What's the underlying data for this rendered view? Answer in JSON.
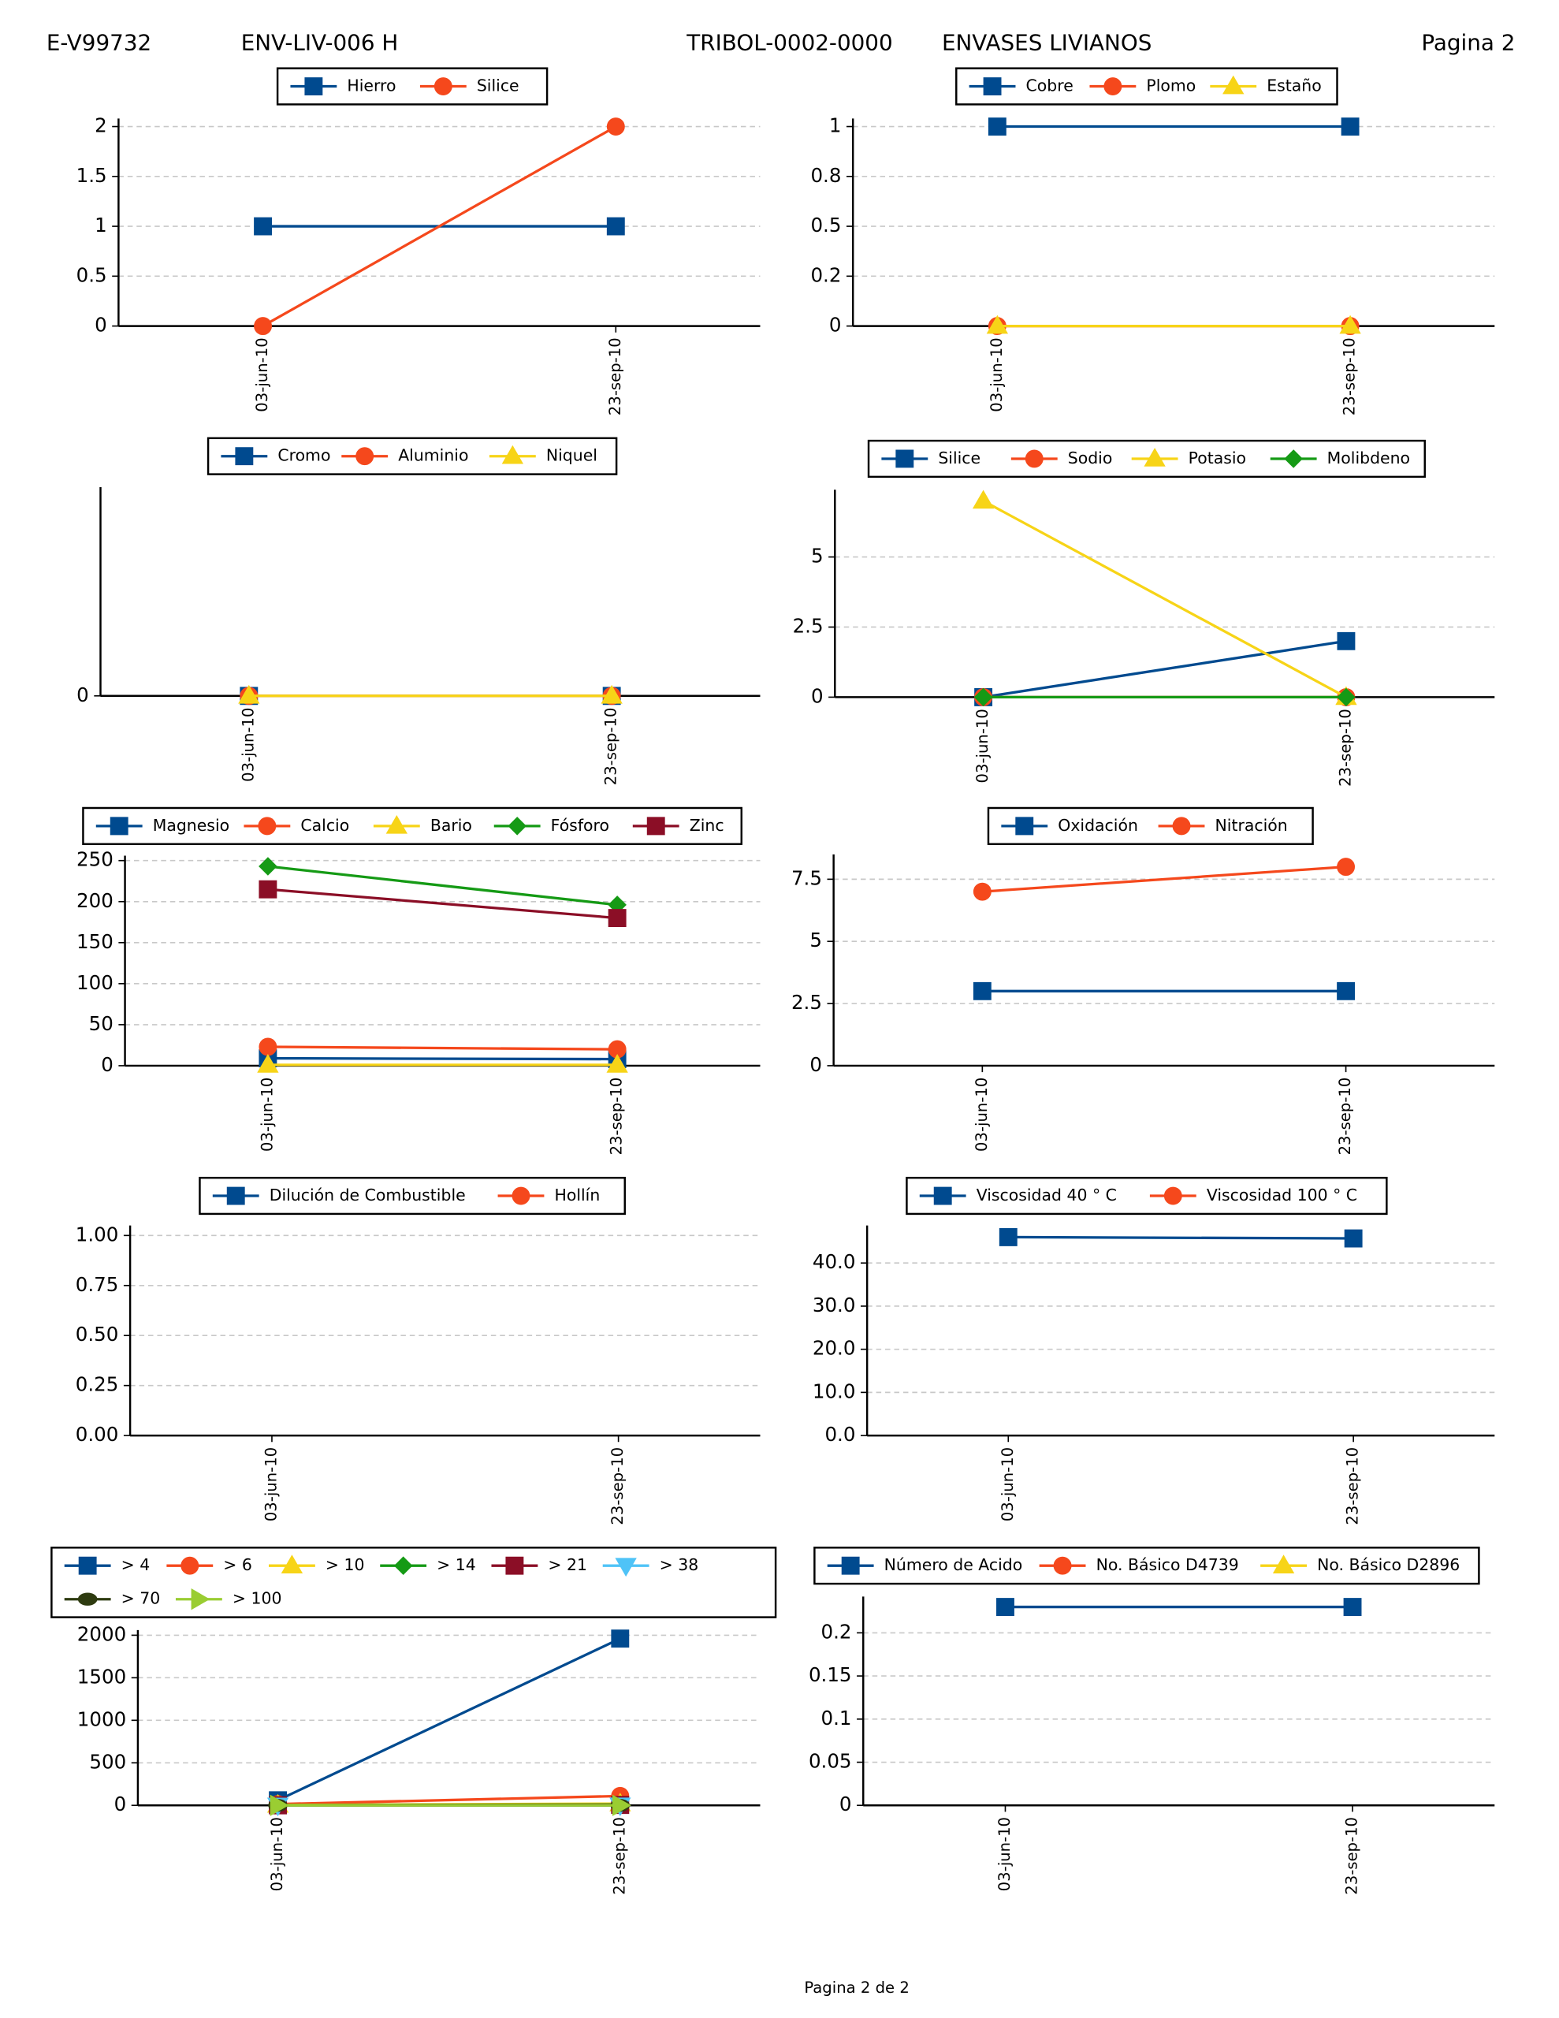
{
  "header": {
    "code": "E-V99732",
    "equipment": "ENV-LIV-006 H",
    "client": "TRIBOL-0002-0000",
    "company": "ENVASES LIVIANOS",
    "page": "Pagina 2"
  },
  "footer": "Pagina 2 de  2",
  "chart_data": [
    {
      "type": "line",
      "categories": [
        "03-jun-10",
        "23-sep-10"
      ],
      "ylim": [
        0,
        2.08
      ],
      "yticks": [
        0,
        0.5,
        1,
        1.5,
        2
      ],
      "grid": true,
      "series": [
        {
          "name": "Hierro",
          "color": "#004a8f",
          "marker": "s",
          "values": [
            1,
            1
          ]
        },
        {
          "name": "Silice",
          "color": "#f5481c",
          "marker": "o",
          "values": [
            0,
            2
          ]
        }
      ]
    },
    {
      "type": "line",
      "categories": [
        "03-jun-10",
        "23-sep-10"
      ],
      "ylim": [
        0,
        1.04
      ],
      "yticks": [
        0,
        {
          "value": 0.25,
          "label": "0.2"
        },
        0.5,
        {
          "value": 0.75,
          "label": "0.8"
        },
        1
      ],
      "grid": true,
      "series": [
        {
          "name": "Cobre",
          "color": "#004a8f",
          "marker": "s",
          "values": [
            1,
            1
          ]
        },
        {
          "name": "Plomo",
          "color": "#f5481c",
          "marker": "o",
          "values": [
            0,
            0
          ]
        },
        {
          "name": "Estaño",
          "color": "#f7d417",
          "marker": "^",
          "values": [
            0,
            0
          ]
        }
      ]
    },
    {
      "type": "line",
      "categories": [
        "03-jun-10",
        "23-sep-10"
      ],
      "ylim": [
        0,
        1
      ],
      "yticks": [
        0
      ],
      "grid": true,
      "series": [
        {
          "name": "Cromo",
          "color": "#004a8f",
          "marker": "s",
          "values": [
            0,
            0
          ]
        },
        {
          "name": "Aluminio",
          "color": "#f5481c",
          "marker": "o",
          "values": [
            0,
            0
          ]
        },
        {
          "name": "Niquel",
          "color": "#f7d417",
          "marker": "^",
          "values": [
            0,
            0
          ]
        }
      ]
    },
    {
      "type": "line",
      "categories": [
        "03-jun-10",
        "23-sep-10"
      ],
      "ylim": [
        0,
        7.4
      ],
      "yticks": [
        0,
        2.5,
        5
      ],
      "grid": true,
      "series": [
        {
          "name": "Silice",
          "color": "#004a8f",
          "marker": "s",
          "values": [
            0,
            2
          ]
        },
        {
          "name": "Sodio",
          "color": "#f5481c",
          "marker": "o",
          "values": [
            0,
            0
          ]
        },
        {
          "name": "Potasio",
          "color": "#f7d417",
          "marker": "^",
          "values": [
            7,
            0
          ]
        },
        {
          "name": "Molibdeno",
          "color": "#159a15",
          "marker": "D",
          "values": [
            0,
            0
          ]
        }
      ]
    },
    {
      "type": "line",
      "categories": [
        "03-jun-10",
        "23-sep-10"
      ],
      "ylim": [
        0,
        256
      ],
      "yticks": [
        0,
        50,
        100,
        150,
        200,
        250
      ],
      "grid": true,
      "series": [
        {
          "name": "Magnesio",
          "color": "#004a8f",
          "marker": "s",
          "values": [
            9,
            8
          ]
        },
        {
          "name": "Calcio",
          "color": "#f5481c",
          "marker": "o",
          "values": [
            23,
            20
          ]
        },
        {
          "name": "Bario",
          "color": "#f7d417",
          "marker": "^",
          "values": [
            1,
            1
          ]
        },
        {
          "name": "Fósforo",
          "color": "#159a15",
          "marker": "D",
          "values": [
            243,
            196
          ]
        },
        {
          "name": "Zinc",
          "color": "#8b0e26",
          "marker": "s",
          "values": [
            215,
            180
          ]
        }
      ]
    },
    {
      "type": "line",
      "categories": [
        "03-jun-10",
        "23-sep-10"
      ],
      "ylim": [
        0,
        8.5
      ],
      "yticks": [
        0,
        2.5,
        5,
        7.5
      ],
      "grid": true,
      "series": [
        {
          "name": "Oxidación",
          "color": "#004a8f",
          "marker": "s",
          "values": [
            3,
            3
          ]
        },
        {
          "name": "Nitración",
          "color": "#f5481c",
          "marker": "o",
          "values": [
            7,
            8
          ]
        }
      ]
    },
    {
      "type": "line",
      "categories": [
        "03-jun-10",
        "23-sep-10"
      ],
      "ylim": [
        0,
        1.05
      ],
      "yticks": [
        {
          "value": 0,
          "label": "0.00"
        },
        {
          "value": 0.25,
          "label": "0.25"
        },
        {
          "value": 0.5,
          "label": "0.50"
        },
        {
          "value": 0.75,
          "label": "0.75"
        },
        {
          "value": 1,
          "label": "1.00"
        }
      ],
      "grid": true,
      "series": [
        {
          "name": "Dilución de Combustible",
          "color": "#004a8f",
          "marker": "s",
          "values": [
            null,
            null
          ]
        },
        {
          "name": "Hollín",
          "color": "#f5481c",
          "marker": "o",
          "values": [
            null,
            null
          ]
        }
      ]
    },
    {
      "type": "line",
      "categories": [
        "03-jun-10",
        "23-sep-10"
      ],
      "ylim": [
        0,
        48.7
      ],
      "yticks": [
        {
          "value": 0,
          "label": "0.0"
        },
        {
          "value": 10,
          "label": "10.0"
        },
        {
          "value": 20,
          "label": "20.0"
        },
        {
          "value": 30,
          "label": "30.0"
        },
        {
          "value": 40,
          "label": "40.0"
        }
      ],
      "grid": true,
      "series": [
        {
          "name": "Viscosidad 40 ° C",
          "color": "#004a8f",
          "marker": "s",
          "values": [
            46,
            45.7
          ]
        },
        {
          "name": "Viscosidad 100 ° C",
          "color": "#f5481c",
          "marker": "o",
          "values": [
            null,
            null
          ]
        }
      ]
    },
    {
      "type": "line",
      "categories": [
        "03-jun-10",
        "23-sep-10"
      ],
      "ylim": [
        0,
        2060
      ],
      "yticks": [
        0,
        500,
        1000,
        1500,
        2000
      ],
      "grid": true,
      "series": [
        {
          "name": "> 4",
          "color": "#004a8f",
          "marker": "s",
          "values": [
            60,
            1960
          ]
        },
        {
          "name": "> 6",
          "color": "#f5481c",
          "marker": "o",
          "values": [
            15,
            110
          ]
        },
        {
          "name": "> 10",
          "color": "#f7d417",
          "marker": "^",
          "values": [
            5,
            20
          ]
        },
        {
          "name": "> 14",
          "color": "#159a15",
          "marker": "D",
          "values": [
            2,
            10
          ]
        },
        {
          "name": "> 21",
          "color": "#8b0e26",
          "marker": "s",
          "values": [
            1,
            5
          ]
        },
        {
          "name": "> 38",
          "color": "#4fc3f7",
          "marker": "v",
          "values": [
            0,
            1
          ]
        },
        {
          "name": "> 70",
          "color": "#2e3b10",
          "marker": "e",
          "values": [
            0,
            0
          ]
        },
        {
          "name": "> 100",
          "color": "#9acd32",
          "marker": ">",
          "values": [
            0,
            0
          ]
        }
      ]
    },
    {
      "type": "line",
      "categories": [
        "03-jun-10",
        "23-sep-10"
      ],
      "ylim": [
        0,
        0.242
      ],
      "yticks": [
        0,
        0.05,
        0.1,
        0.15,
        0.2
      ],
      "grid": true,
      "series": [
        {
          "name": "Número de Acido",
          "color": "#004a8f",
          "marker": "s",
          "values": [
            0.23,
            0.23
          ]
        },
        {
          "name": "No. Básico D4739",
          "color": "#f5481c",
          "marker": "o",
          "values": [
            null,
            null
          ]
        },
        {
          "name": "No. Básico D2896",
          "color": "#f7d417",
          "marker": "^",
          "values": [
            null,
            null
          ]
        }
      ]
    }
  ]
}
